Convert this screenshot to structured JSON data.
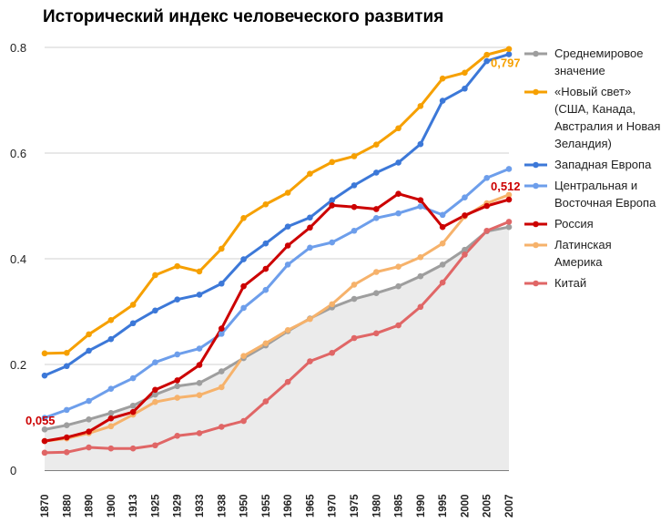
{
  "chart_data": {
    "type": "line",
    "title": "Исторический индекс человеческого развития",
    "xlabel": "",
    "ylabel": "",
    "ylim": [
      0,
      0.8
    ],
    "y_ticks": [
      "0",
      "0.2",
      "0.4",
      "0.6",
      "0.8"
    ],
    "grid": true,
    "legend_position": "right",
    "categories": [
      "1870",
      "1880",
      "1890",
      "1900",
      "1913",
      "1925",
      "1929",
      "1933",
      "1938",
      "1950",
      "1955",
      "1960",
      "1965",
      "1970",
      "1975",
      "1980",
      "1985",
      "1990",
      "1995",
      "2000",
      "2005",
      "2007"
    ],
    "series": [
      {
        "name": "Среднемировое значение",
        "color": "#9e9e9e",
        "area": true,
        "values": [
          0.077,
          0.085,
          0.096,
          0.108,
          0.122,
          0.143,
          0.159,
          0.165,
          0.187,
          0.212,
          0.236,
          0.263,
          0.287,
          0.308,
          0.324,
          0.335,
          0.348,
          0.367,
          0.389,
          0.417,
          0.452,
          0.46
        ]
      },
      {
        "name": "«Новый свет» (США, Канада, Австралия и Новая Зеландия)",
        "color": "#f6a000",
        "values": [
          0.221,
          0.222,
          0.257,
          0.284,
          0.313,
          0.369,
          0.386,
          0.376,
          0.419,
          0.477,
          0.503,
          0.525,
          0.561,
          0.583,
          0.594,
          0.616,
          0.647,
          0.689,
          0.741,
          0.752,
          0.786,
          0.797
        ]
      },
      {
        "name": "Западная Европа",
        "color": "#3c78d8",
        "values": [
          0.179,
          0.197,
          0.226,
          0.248,
          0.278,
          0.302,
          0.323,
          0.332,
          0.353,
          0.399,
          0.429,
          0.461,
          0.478,
          0.511,
          0.539,
          0.563,
          0.582,
          0.617,
          0.699,
          0.722,
          0.774,
          0.787
        ]
      },
      {
        "name": "Центральная и Восточная Европа",
        "color": "#6d9eeb",
        "values": [
          0.099,
          0.114,
          0.131,
          0.154,
          0.174,
          0.204,
          0.219,
          0.23,
          0.258,
          0.307,
          0.341,
          0.389,
          0.421,
          0.431,
          0.453,
          0.477,
          0.486,
          0.499,
          0.483,
          0.516,
          0.553,
          0.57
        ]
      },
      {
        "name": "Россия",
        "color": "#cc0000",
        "values": [
          0.055,
          0.062,
          0.073,
          0.098,
          0.11,
          0.152,
          0.17,
          0.199,
          0.268,
          0.348,
          0.381,
          0.425,
          0.459,
          0.501,
          0.498,
          0.494,
          0.523,
          0.511,
          0.46,
          0.482,
          0.5,
          0.512
        ]
      },
      {
        "name": "Латинская Америка",
        "color": "#f6b26b",
        "values": [
          0.055,
          0.06,
          0.07,
          0.083,
          0.105,
          0.129,
          0.137,
          0.142,
          0.157,
          0.216,
          0.24,
          0.265,
          0.286,
          0.314,
          0.351,
          0.375,
          0.385,
          0.403,
          0.429,
          0.48,
          0.505,
          0.521
        ]
      },
      {
        "name": "Китай",
        "color": "#e06666",
        "values": [
          0.033,
          0.034,
          0.043,
          0.041,
          0.041,
          0.047,
          0.065,
          0.07,
          0.082,
          0.093,
          0.13,
          0.167,
          0.206,
          0.222,
          0.25,
          0.259,
          0.274,
          0.309,
          0.355,
          0.408,
          0.453,
          0.47
        ]
      }
    ],
    "annotations": [
      {
        "text": "0,797",
        "series": 1,
        "index": 21,
        "color": "#f6a000"
      },
      {
        "text": "0,512",
        "series": 4,
        "index": 21,
        "color": "#cc0000"
      },
      {
        "text": "0,055",
        "series": 4,
        "index": 0,
        "color": "#cc0000"
      }
    ]
  }
}
